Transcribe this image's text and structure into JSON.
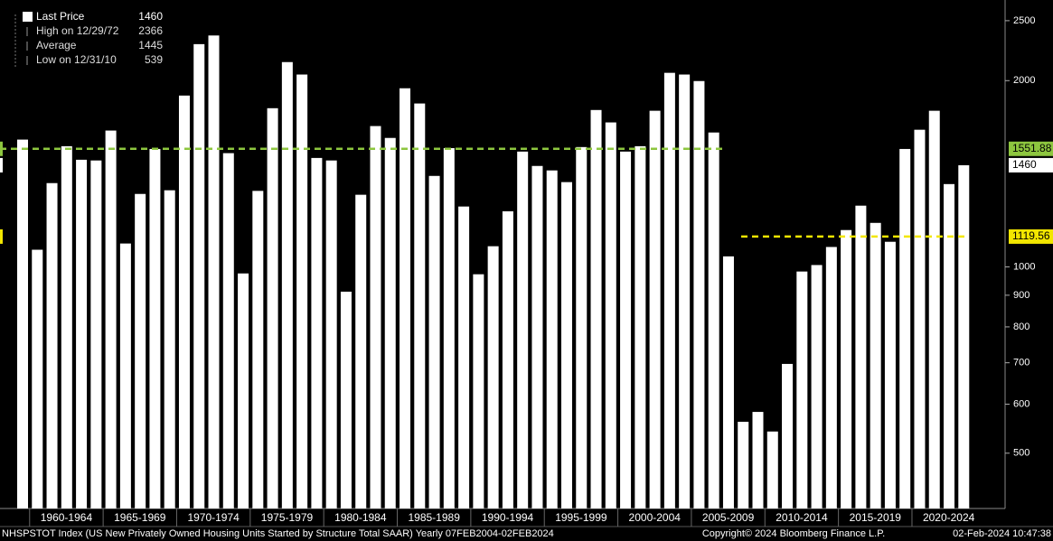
{
  "chart_data": {
    "type": "bar",
    "log_scale": true,
    "color": "#ffffff",
    "x_group_labels": [
      "1960-1964",
      "1965-1969",
      "1970-1974",
      "1975-1979",
      "1980-1984",
      "1985-1989",
      "1990-1994",
      "1995-1999",
      "2000-2004",
      "2005-2009",
      "2010-2014",
      "2015-2019",
      "2020-2024"
    ],
    "values": [
      1606,
      1066,
      1366,
      1567,
      1490,
      1486,
      1661,
      1091,
      1312,
      1551,
      1330,
      1892,
      2291,
      2366,
      1527,
      976,
      1327,
      1805,
      2143,
      2046,
      1500,
      1486,
      912,
      1308,
      1689,
      1616,
      1944,
      1837,
      1403,
      1556,
      1252,
      973,
      1080,
      1230,
      1536,
      1456,
      1432,
      1371,
      1562,
      1793,
      1712,
      1536,
      1567,
      1788,
      2059,
      2046,
      1997,
      1649,
      1040,
      562,
      583,
      542,
      697,
      983,
      1007,
      1077,
      1147,
      1256,
      1178,
      1098,
      1551,
      1666,
      1788,
      1361,
      1460
    ],
    "ylim": [
      407,
      2700
    ],
    "yticks": [
      500,
      600,
      700,
      800,
      900,
      1000,
      2000,
      2500
    ],
    "reference_lines": [
      {
        "value": 1551.88,
        "color": "#8dc63f"
      },
      {
        "value": 1119.56,
        "color": "#f2e600"
      }
    ],
    "last_value": 1460,
    "legend": [
      {
        "label": "Last Price",
        "value": 1460
      },
      {
        "label": "High on 12/29/72",
        "value": 2366
      },
      {
        "label": "Average",
        "value": 1445
      },
      {
        "label": "Low on 12/31/10",
        "value": 539
      }
    ],
    "footer": {
      "left": "NHSPSTOT Index (US New Privately Owned Housing Units Started by Structure Total SAAR)  Yearly 07FEB2004-02FEB2024",
      "center": "Copyright© 2024 Bloomberg Finance L.P.",
      "right": "02-Feb-2024 10:47:38"
    }
  }
}
